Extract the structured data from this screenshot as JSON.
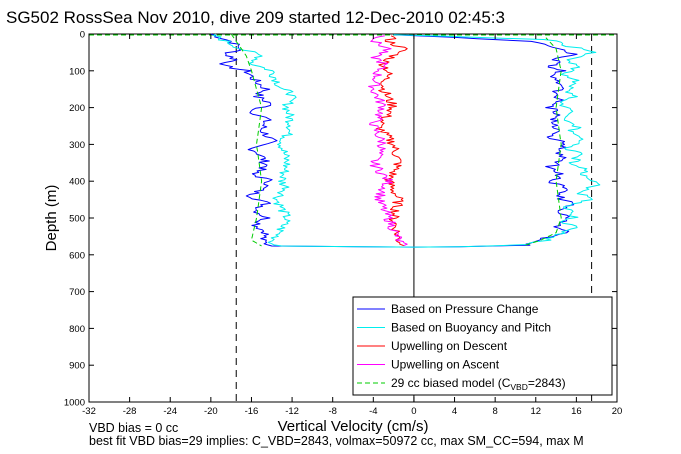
{
  "chart_data": {
    "type": "line",
    "title": "SG502 RossSea Nov 2010, dive 209 started 12-Dec-2010 02:45:3",
    "xlabel": "Vertical Velocity (cm/s)",
    "ylabel": "Depth (m)",
    "xlim": [
      -32,
      20
    ],
    "ylim": [
      1000,
      0
    ],
    "y_reversed": true,
    "x_ticks": [
      "-32",
      "-28",
      "-24",
      "-20",
      "-16",
      "-12",
      "-8",
      "-4",
      "0",
      "4",
      "8",
      "12",
      "16",
      "20"
    ],
    "y_ticks": [
      "0",
      "100",
      "200",
      "300",
      "400",
      "500",
      "600",
      "700",
      "800",
      "900",
      "1000"
    ],
    "grid": false,
    "legend_position": "bottom-right",
    "reference_lines": {
      "dashed_x": [
        -17.5,
        17.5
      ],
      "solid_x": [
        0
      ]
    },
    "series": [
      {
        "name": "Based on Pressure Change",
        "color": "#0000ff",
        "segments": [
          [
            [
              -20,
              0
            ],
            [
              -18,
              20
            ],
            [
              -17,
              40
            ],
            [
              -18.5,
              55
            ],
            [
              -17.5,
              70
            ],
            [
              -19,
              85
            ],
            [
              -16.5,
              100
            ],
            [
              -15.5,
              130
            ],
            [
              -14.5,
              150
            ],
            [
              -15.5,
              170
            ],
            [
              -14,
              190
            ],
            [
              -16,
              210
            ],
            [
              -14.5,
              230
            ],
            [
              -15,
              260
            ],
            [
              -14,
              290
            ],
            [
              -16,
              310
            ],
            [
              -15,
              330
            ],
            [
              -14.5,
              360
            ],
            [
              -16,
              380
            ],
            [
              -14,
              400
            ],
            [
              -15,
              420
            ],
            [
              -16,
              440
            ],
            [
              -14.5,
              460
            ],
            [
              -15.5,
              480
            ],
            [
              -14.5,
              500
            ],
            [
              -15.5,
              520
            ],
            [
              -14.5,
              540
            ],
            [
              -15,
              560
            ],
            [
              -14.5,
              570
            ],
            [
              -14,
              576
            ],
            [
              -5,
              578
            ],
            [
              0,
              579
            ],
            [
              5,
              578
            ],
            [
              11,
              574
            ],
            [
              12,
              568
            ],
            [
              13,
              555
            ],
            [
              15,
              540
            ],
            [
              14,
              520
            ],
            [
              15,
              500
            ],
            [
              14,
              480
            ],
            [
              15.5,
              460
            ],
            [
              14,
              440
            ],
            [
              15,
              420
            ],
            [
              13.5,
              400
            ],
            [
              14.5,
              380
            ],
            [
              13.5,
              360
            ],
            [
              15,
              340
            ],
            [
              14,
              320
            ],
            [
              15,
              300
            ],
            [
              13.5,
              280
            ],
            [
              14.5,
              260
            ],
            [
              13.5,
              240
            ],
            [
              14.5,
              220
            ],
            [
              13.5,
              200
            ],
            [
              14.5,
              180
            ],
            [
              13.5,
              160
            ],
            [
              15,
              140
            ],
            [
              13.5,
              120
            ],
            [
              14.5,
              100
            ],
            [
              13,
              90
            ],
            [
              14.5,
              80
            ],
            [
              13.5,
              70
            ],
            [
              16,
              55
            ],
            [
              14,
              40
            ],
            [
              12,
              20
            ],
            [
              -2,
              2
            ]
          ]
        ]
      },
      {
        "name": "Based on Buoyancy and Pitch",
        "color": "#00eeee",
        "segments": [
          [
            [
              -20,
              0
            ],
            [
              -17,
              40
            ],
            [
              -15,
              60
            ],
            [
              -16,
              80
            ],
            [
              -14,
              100
            ],
            [
              -13,
              150
            ],
            [
              -12,
              160
            ],
            [
              -12.5,
              200
            ],
            [
              -12,
              250
            ],
            [
              -13,
              300
            ],
            [
              -12.5,
              350
            ],
            [
              -13,
              400
            ],
            [
              -12.5,
              420
            ],
            [
              -13.5,
              450
            ],
            [
              -12.5,
              500
            ],
            [
              -13.5,
              550
            ],
            [
              -14,
              570
            ],
            [
              -13,
              576
            ],
            [
              -5,
              578
            ],
            [
              0,
              579
            ],
            [
              5,
              578
            ],
            [
              11,
              572
            ],
            [
              13,
              560
            ],
            [
              14,
              545
            ],
            [
              16,
              530
            ],
            [
              15,
              510
            ],
            [
              16,
              490
            ],
            [
              15,
              470
            ],
            [
              17.5,
              450
            ],
            [
              16,
              430
            ],
            [
              18.5,
              410
            ],
            [
              16.5,
              390
            ],
            [
              17,
              370
            ],
            [
              15.5,
              350
            ],
            [
              16.5,
              330
            ],
            [
              15,
              310
            ],
            [
              16.5,
              290
            ],
            [
              15.5,
              270
            ],
            [
              16,
              250
            ],
            [
              15,
              230
            ],
            [
              16,
              210
            ],
            [
              14.5,
              190
            ],
            [
              16,
              170
            ],
            [
              15,
              150
            ],
            [
              16,
              130
            ],
            [
              15,
              110
            ],
            [
              16,
              90
            ],
            [
              15,
              70
            ],
            [
              17.5,
              50
            ],
            [
              15,
              30
            ],
            [
              13,
              15
            ],
            [
              -2,
              2
            ]
          ]
        ]
      },
      {
        "name": "Upwelling on Descent",
        "color": "#ff0000",
        "segments": [
          [
            [
              -2,
              5
            ],
            [
              -2.5,
              20
            ],
            [
              -1,
              40
            ],
            [
              -2,
              60
            ],
            [
              -3,
              80
            ],
            [
              -2.5,
              100
            ],
            [
              -3,
              150
            ],
            [
              -2,
              200
            ],
            [
              -3.5,
              250
            ],
            [
              -2,
              300
            ],
            [
              -1.5,
              350
            ],
            [
              -2.5,
              400
            ],
            [
              -1.5,
              450
            ],
            [
              -2,
              500
            ],
            [
              -1.5,
              560
            ],
            [
              -1,
              575
            ]
          ]
        ]
      },
      {
        "name": "Upwelling on Ascent",
        "color": "#ff00ff",
        "segments": [
          [
            [
              -3,
              5
            ],
            [
              -4,
              20
            ],
            [
              -2.5,
              40
            ],
            [
              -4,
              60
            ],
            [
              -3,
              80
            ],
            [
              -3.5,
              100
            ],
            [
              -4,
              150
            ],
            [
              -3,
              200
            ],
            [
              -4,
              250
            ],
            [
              -3,
              300
            ],
            [
              -4,
              350
            ],
            [
              -2.5,
              400
            ],
            [
              -3.5,
              450
            ],
            [
              -2.5,
              500
            ],
            [
              -1.5,
              560
            ],
            [
              -1,
              575
            ]
          ]
        ]
      },
      {
        "name": "29 cc biased model (C_VBD=2843)",
        "color": "#00cc00",
        "dashed": true,
        "segments": [
          [
            [
              -18,
              0
            ],
            [
              -17,
              40
            ],
            [
              -16.5,
              60
            ],
            [
              -16,
              100
            ],
            [
              -15,
              200
            ],
            [
              -15.5,
              300
            ],
            [
              -15,
              400
            ],
            [
              -15.5,
              500
            ],
            [
              -16,
              560
            ],
            [
              -15,
              576
            ]
          ],
          [
            [
              11,
              574
            ],
            [
              12.5,
              560
            ],
            [
              14,
              540
            ],
            [
              14.5,
              500
            ],
            [
              14,
              400
            ],
            [
              14.5,
              300
            ],
            [
              14,
              200
            ],
            [
              14.5,
              100
            ],
            [
              14,
              40
            ],
            [
              13,
              10
            ]
          ]
        ]
      }
    ],
    "legend": [
      {
        "label": "Based on Pressure Change",
        "color": "#0000ff",
        "style": "solid"
      },
      {
        "label": "Based on Buoyancy and Pitch",
        "color": "#00eeee",
        "style": "solid"
      },
      {
        "label": "Upwelling on Descent",
        "color": "#ff0000",
        "style": "solid"
      },
      {
        "label": "Upwelling on Ascent",
        "color": "#ff00ff",
        "style": "solid"
      },
      {
        "label": "29 cc biased model (C",
        "sub": "VBD",
        "suffix": "=2843)",
        "color": "#00cc00",
        "style": "dashed"
      }
    ],
    "annotations": [
      "VBD bias = 0 cc",
      "best fit VBD bias=29 implies: C_VBD=2843, volmax=50972 cc, max SM_CC=594, max M"
    ]
  }
}
